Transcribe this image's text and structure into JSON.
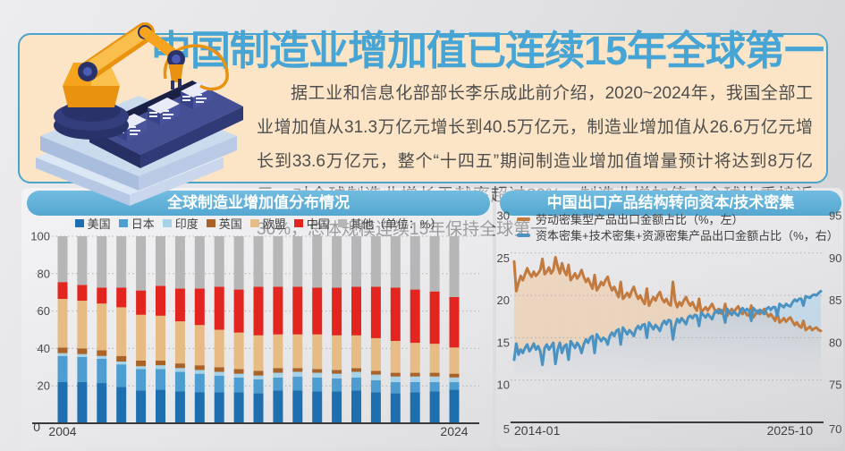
{
  "hero": {
    "title": "中国制造业增加值已连续15年全球第一",
    "body": "据工业和信息化部部长李乐成此前介绍，2020~2024年，我国全部工业增加值从31.3万亿元增长到40.5万亿元，制造业增加值从26.6万亿元增长到33.6万亿元，整个“十四五”期间制造业增加值增量预计将达到8万亿元，对全球制造业增长贡献率超过30%。制造业增加值占全球比重接近30%，总体规模连续15年保持全球第一。"
  },
  "colors": {
    "title_blue": "#47a5d6",
    "panel_peach": "#fbe5c6",
    "panel_border": "#4ba4cb",
    "pill_blue": "#5fb0d8",
    "axis_text": "#4a4a4a",
    "gridline": "#b0b0b0"
  },
  "chart_data": [
    {
      "type": "bar",
      "subtype": "stacked",
      "title": "全球制造业增加值分布情况",
      "unit_note": "（单位：%）",
      "years": [
        2004,
        2005,
        2006,
        2007,
        2008,
        2009,
        2010,
        2011,
        2012,
        2013,
        2014,
        2015,
        2016,
        2017,
        2018,
        2019,
        2020,
        2021,
        2022,
        2023,
        2024
      ],
      "x_tick_labels": [
        "2004",
        "2024"
      ],
      "y_ticks": [
        0,
        20,
        40,
        60,
        80,
        100
      ],
      "ylim": [
        0,
        100
      ],
      "grid": "dotted-horizontal",
      "legend_position": "top",
      "series": [
        {
          "name": "美国",
          "color": "#1d6faf",
          "values": [
            22,
            22,
            21.5,
            19.5,
            17.5,
            18,
            17,
            16.5,
            16.5,
            16.5,
            16,
            17.5,
            17.5,
            17,
            17,
            17.5,
            16.5,
            16,
            16.5,
            17,
            18
          ]
        },
        {
          "name": "日本",
          "color": "#4e9dd0",
          "values": [
            14,
            13.5,
            13,
            12,
            11.5,
            11,
            10.5,
            10,
            9,
            8,
            7.5,
            7,
            7.5,
            7.5,
            7,
            7,
            6.5,
            6,
            5.5,
            5,
            4
          ]
        },
        {
          "name": "印度",
          "color": "#a8d2e8",
          "values": [
            1.5,
            1.5,
            1.5,
            1.5,
            1.5,
            2,
            2,
            2,
            2,
            2,
            2,
            2.5,
            2.5,
            2.5,
            2.5,
            3,
            3,
            3,
            3,
            3,
            2.5
          ]
        },
        {
          "name": "英国",
          "color": "#a96227",
          "values": [
            3,
            3,
            3,
            3,
            3,
            2.5,
            2.5,
            2.5,
            2.5,
            2.5,
            2.5,
            2.5,
            2,
            2,
            2,
            2,
            2,
            2,
            2,
            2,
            2
          ]
        },
        {
          "name": "欧盟",
          "color": "#e7bb84",
          "values": [
            26,
            25.5,
            25,
            26,
            24.5,
            24,
            22.5,
            21.5,
            20,
            19.5,
            19,
            18,
            18,
            18.5,
            18.5,
            17.5,
            17.5,
            17,
            16,
            15.5,
            14
          ]
        },
        {
          "name": "中国",
          "color": "#e2251e",
          "values": [
            9,
            8.5,
            8.5,
            10.5,
            13,
            16,
            17.5,
            19.5,
            23,
            23,
            26,
            25.5,
            25.5,
            25,
            25.5,
            26,
            27.5,
            28.5,
            28.5,
            28,
            27
          ]
        },
        {
          "name": "其他",
          "color": "#b6b6b6",
          "values": [
            24.5,
            26,
            27.5,
            27.5,
            29,
            26.5,
            28,
            28,
            27,
            28.5,
            27,
            27,
            27,
            27.5,
            27.5,
            27,
            27,
            27.5,
            28.5,
            29.5,
            32.5
          ]
        }
      ]
    },
    {
      "type": "line",
      "title": "中国出口产品结构转向资本/技术密集",
      "x_start": "2014-01",
      "x_end": "2025-10",
      "x_frequency": "monthly",
      "left_axis": {
        "ticks": [
          5,
          10,
          15,
          20,
          25,
          30
        ],
        "lim": [
          5,
          30
        ]
      },
      "right_axis": {
        "ticks": [
          70,
          75,
          80,
          85,
          90,
          95
        ],
        "lim": [
          70,
          95
        ]
      },
      "grid": "dotted-horizontal",
      "legend_position": "top",
      "fill_between_lines": {
        "labor_above": "#efc79a",
        "capital_above": "#a9d2ec"
      },
      "under_fill": "#96acbc",
      "series": [
        {
          "name": "劳动密集型产品出口金额占比（%，左）",
          "axis": "left",
          "color": "#c27a3f",
          "values": [
            24.0,
            20.5,
            21.5,
            22.3,
            21.8,
            22.5,
            23.2,
            22.6,
            22.2,
            22.8,
            22.3,
            22.6,
            23.0,
            24.3,
            22.5,
            22.8,
            23.3,
            22.6,
            23.0,
            24.5,
            23.4,
            22.6,
            23.8,
            22.9,
            22.4,
            23.6,
            21.8,
            22.2,
            22.6,
            22.0,
            22.4,
            23.0,
            22.2,
            21.6,
            22.0,
            21.4,
            20.8,
            22.4,
            20.6,
            21.0,
            21.6,
            21.2,
            21.8,
            22.2,
            21.2,
            20.6,
            21.0,
            20.4,
            19.8,
            21.6,
            19.6,
            19.9,
            20.3,
            19.8,
            20.5,
            21.0,
            20.2,
            19.6,
            20.0,
            19.4,
            19.0,
            20.8,
            18.8,
            19.3,
            19.8,
            19.4,
            20.0,
            20.4,
            19.6,
            19.2,
            19.6,
            19.0,
            18.8,
            21.6,
            19.4,
            18.6,
            19.2,
            18.8,
            19.4,
            19.8,
            19.2,
            18.8,
            19.2,
            18.6,
            18.2,
            19.6,
            18.0,
            18.3,
            18.6,
            18.2,
            18.6,
            19.0,
            18.4,
            18.0,
            18.4,
            17.9,
            17.8,
            19.0,
            17.6,
            18.0,
            18.4,
            18.0,
            18.4,
            18.7,
            18.2,
            17.8,
            18.2,
            17.7,
            17.6,
            18.8,
            17.4,
            17.8,
            18.2,
            17.8,
            18.1,
            18.4,
            17.9,
            17.5,
            17.8,
            17.4,
            17.0,
            18.0,
            16.8,
            17.0,
            17.3,
            16.9,
            17.2,
            17.4,
            16.9,
            16.5,
            16.8,
            16.4,
            16.2,
            17.0,
            15.9,
            16.1,
            16.3,
            15.9,
            16.1,
            16.2,
            15.9,
            15.8
          ]
        },
        {
          "name": "资本密集+技术密集+资源密集产品出口金额占比（%，右）",
          "axis": "right",
          "color": "#4a92c2",
          "values": [
            77.4,
            79.3,
            78.0,
            78.6,
            78.2,
            78.8,
            79.2,
            78.4,
            78.8,
            79.3,
            78.6,
            79.0,
            78.4,
            76.8,
            78.8,
            79.2,
            78.6,
            79.0,
            79.4,
            76.9,
            78.6,
            79.4,
            78.2,
            79.0,
            79.2,
            77.4,
            79.6,
            79.2,
            78.8,
            79.4,
            79.0,
            78.2,
            79.2,
            79.8,
            79.4,
            80.0,
            80.2,
            78.2,
            80.4,
            80.0,
            79.6,
            80.0,
            79.8,
            79.2,
            80.2,
            80.6,
            80.2,
            80.8,
            81.0,
            79.2,
            81.2,
            80.8,
            80.4,
            80.9,
            80.6,
            80.2,
            81.0,
            81.4,
            81.0,
            81.5,
            81.6,
            80.0,
            81.8,
            81.4,
            81.0,
            81.5,
            81.2,
            80.8,
            81.6,
            82.0,
            81.6,
            82.1,
            82.0,
            79.8,
            81.4,
            82.2,
            81.8,
            82.3,
            82.0,
            81.6,
            82.4,
            82.6,
            82.3,
            82.7,
            82.6,
            81.4,
            83.0,
            82.7,
            82.4,
            82.8,
            82.5,
            82.2,
            82.9,
            83.2,
            82.9,
            83.3,
            83.0,
            81.8,
            83.4,
            83.0,
            82.7,
            83.1,
            82.8,
            82.6,
            83.2,
            83.5,
            83.1,
            83.4,
            83.2,
            82.0,
            83.5,
            83.2,
            82.9,
            83.3,
            83.0,
            82.8,
            83.4,
            83.6,
            83.3,
            83.6,
            83.6,
            82.6,
            84.0,
            83.8,
            83.6,
            84.0,
            83.8,
            83.7,
            84.2,
            84.5,
            84.3,
            84.6,
            84.6,
            83.8,
            84.9,
            84.8,
            84.7,
            85.0,
            85.1,
            85.0,
            85.3,
            85.5
          ]
        }
      ]
    }
  ]
}
